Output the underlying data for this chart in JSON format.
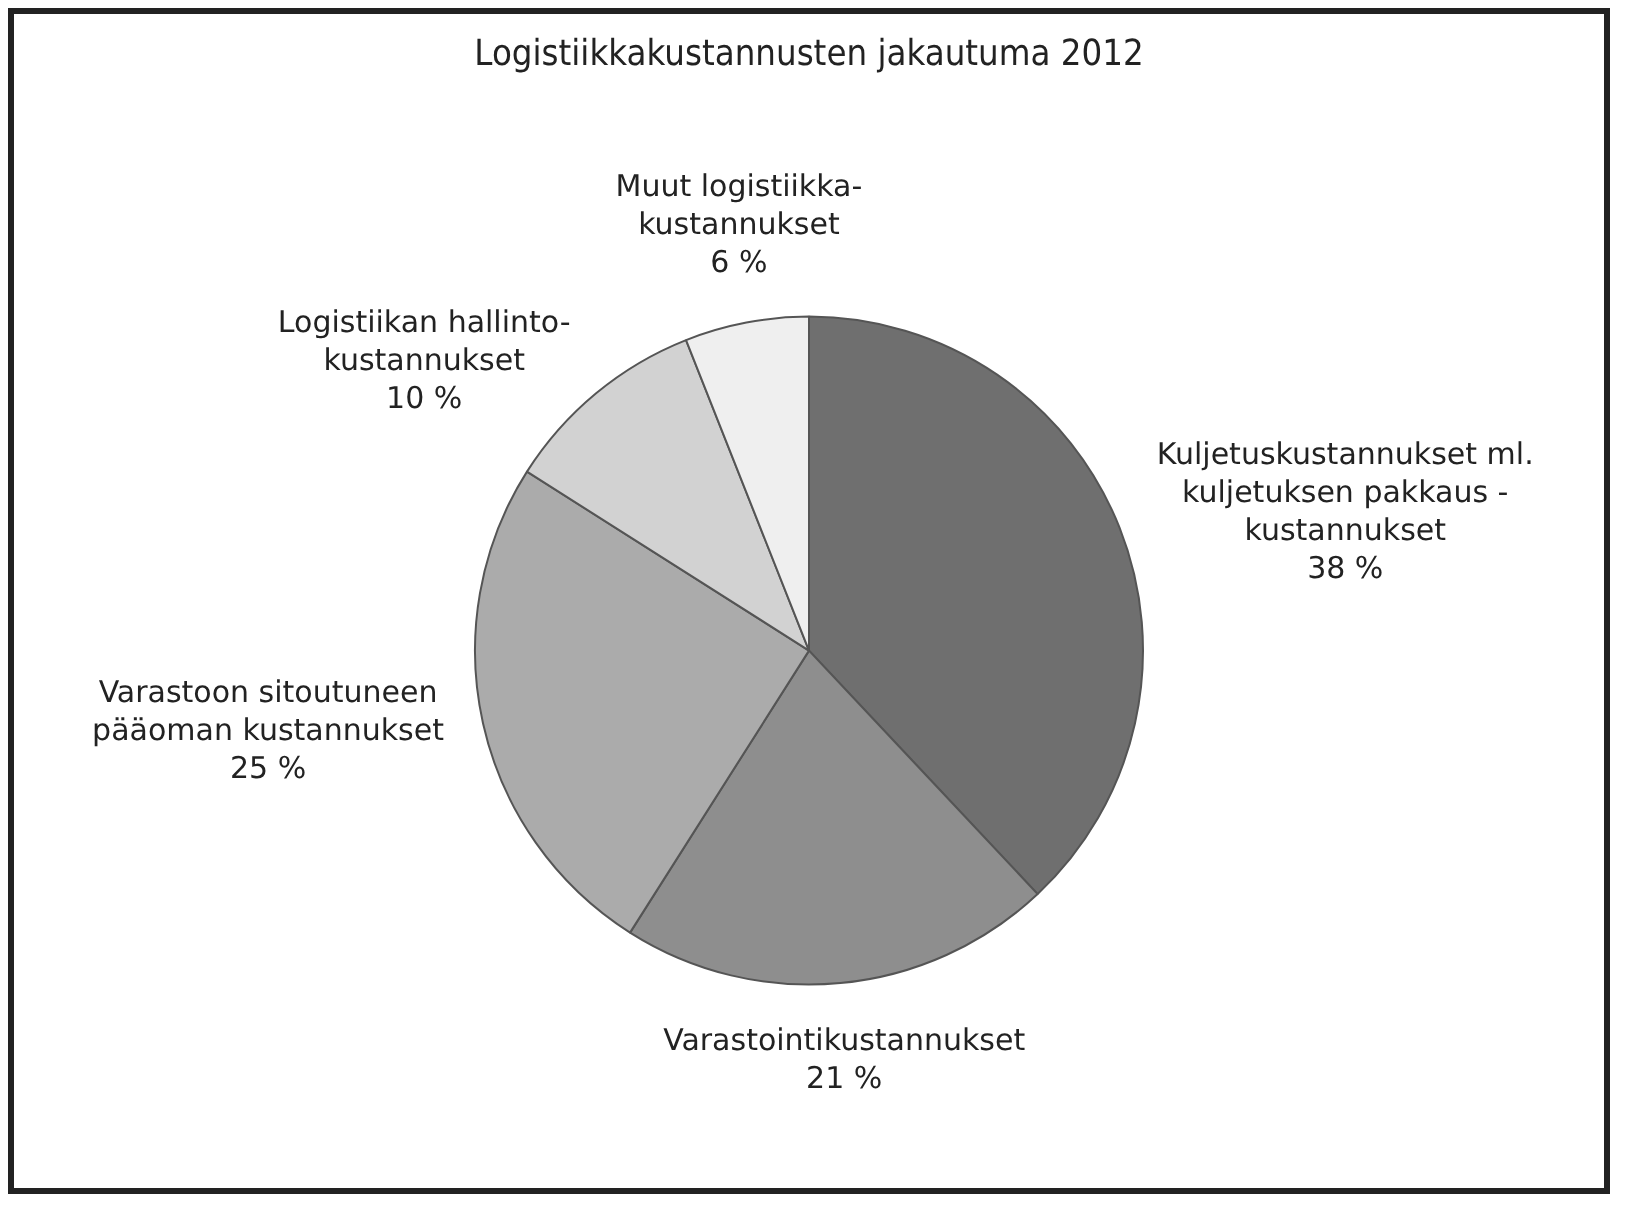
{
  "chart_data": {
    "type": "pie",
    "title": "Logistiikkakustannusten jakautuma 2012",
    "categories": [
      "Kuljetuskustannukset ml.\nkuljetuksen pakkaus -\nkustannukset",
      "Varastointikustannukset",
      "Varastoon sitoutuneen\npääoman kustannukset",
      "Logistiikan hallinto-\nkustannukset",
      "Muut logistiikka-\nkustannukset"
    ],
    "values": [
      38,
      21,
      25,
      10,
      6
    ],
    "value_labels": [
      "38 %",
      "21 %",
      "25 %",
      "10 %",
      "6 %"
    ],
    "colors": [
      "#6f6f6f",
      "#8e8e8e",
      "#ababab",
      "#d2d2d2",
      "#efefef"
    ],
    "legend": false
  }
}
